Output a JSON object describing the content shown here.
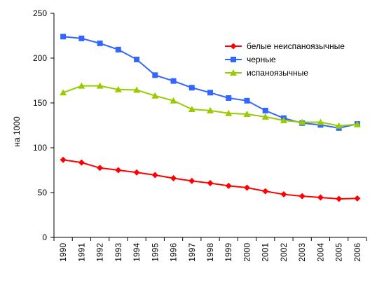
{
  "chart_data": {
    "type": "line",
    "title": "",
    "xlabel": "",
    "ylabel": "на 1000",
    "ylim": [
      0,
      250
    ],
    "yticks": [
      0,
      50,
      100,
      150,
      200,
      250
    ],
    "grid": false,
    "legend_position": "top-right",
    "x": [
      "1990",
      "1991",
      "1992",
      "1993",
      "1994",
      "1995",
      "1996",
      "1997",
      "1998",
      "1999",
      "2000",
      "2001",
      "2002",
      "2003",
      "2004",
      "2005",
      "2006"
    ],
    "series": [
      {
        "name": "белые неиспаноязычные",
        "color": "#ff0000",
        "marker": "diamond",
        "values": [
          86.5,
          83.5,
          77.5,
          75,
          72.5,
          69.5,
          66,
          63,
          60.5,
          57.5,
          55.5,
          51.5,
          48,
          46,
          44.5,
          43,
          43.5
        ]
      },
      {
        "name": "черные",
        "color": "#3366ff",
        "marker": "square",
        "values": [
          224,
          222,
          216.5,
          209.5,
          198.5,
          181,
          174.5,
          167,
          161.5,
          155.5,
          152.5,
          141.5,
          133,
          127.5,
          125.5,
          122,
          126.5
        ]
      },
      {
        "name": "испаноязычные",
        "color": "#99cc00",
        "marker": "triangle",
        "values": [
          161.5,
          169,
          169,
          165,
          164.5,
          158,
          152.5,
          143,
          141.5,
          138.5,
          137.5,
          134.5,
          130.5,
          128.5,
          128.5,
          124.5,
          126
        ]
      }
    ]
  }
}
